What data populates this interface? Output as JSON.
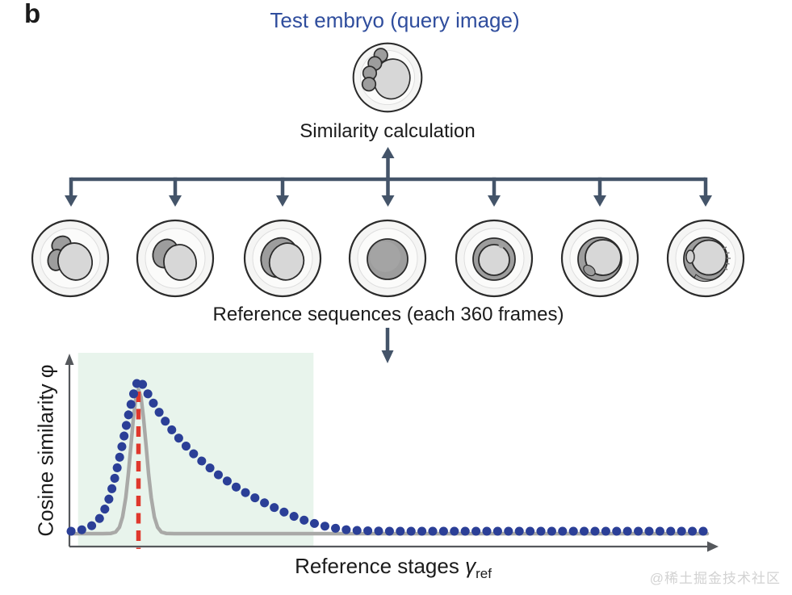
{
  "panel_label": "b",
  "title": {
    "text": "Test embryo (query image)"
  },
  "similarity_label": "Similarity calculation",
  "reference_label": "Reference sequences (each 360 frames)",
  "embryos": {
    "query": {
      "name": "query-embryo",
      "stage": "compacting morula with cells"
    },
    "reference": [
      {
        "stage": "3-cell"
      },
      {
        "stage": "2-cell"
      },
      {
        "stage": "zygote with crescent"
      },
      {
        "stage": "morula"
      },
      {
        "stage": "early blastocyst"
      },
      {
        "stage": "blastocyst"
      },
      {
        "stage": "hatching blastocyst"
      }
    ]
  },
  "chart_data": {
    "type": "line",
    "title": "",
    "xlabel": "Reference stages γref",
    "xlabel_main": "Reference stages ",
    "xlabel_symbol": "γ",
    "xlabel_subscript": "ref",
    "ylabel": "Cosine similarity φ",
    "grid": false,
    "legend": false,
    "ylim": [
      0,
      1
    ],
    "x_axis_note": "no tick labels shown; axis spans the 360 reference frames",
    "highlight_region": {
      "x_start": 0.011,
      "x_end": 0.381,
      "color": "#e8f4ec"
    },
    "peak_marker": {
      "x": 0.106,
      "style": "dashed",
      "color": "#df382d"
    },
    "series": [
      {
        "name": "cosine similarity of query vs reference stages",
        "style": "dotted",
        "color": "#2b3f97",
        "points": [
          [
            0.0,
            0.0
          ],
          [
            0.013,
            0.005
          ],
          [
            0.026,
            0.02
          ],
          [
            0.038,
            0.05
          ],
          [
            0.048,
            0.1
          ],
          [
            0.058,
            0.19
          ],
          [
            0.067,
            0.32
          ],
          [
            0.076,
            0.48
          ],
          [
            0.084,
            0.64
          ],
          [
            0.091,
            0.78
          ],
          [
            0.098,
            0.9
          ],
          [
            0.103,
            0.97
          ],
          [
            0.106,
            1.0
          ],
          [
            0.112,
            0.97
          ],
          [
            0.12,
            0.91
          ],
          [
            0.13,
            0.84
          ],
          [
            0.142,
            0.76
          ],
          [
            0.156,
            0.68
          ],
          [
            0.172,
            0.6
          ],
          [
            0.19,
            0.52
          ],
          [
            0.21,
            0.445
          ],
          [
            0.232,
            0.37
          ],
          [
            0.256,
            0.3
          ],
          [
            0.28,
            0.24
          ],
          [
            0.305,
            0.185
          ],
          [
            0.33,
            0.135
          ],
          [
            0.355,
            0.09
          ],
          [
            0.375,
            0.06
          ],
          [
            0.392,
            0.04
          ],
          [
            0.408,
            0.025
          ],
          [
            0.425,
            0.013
          ],
          [
            0.44,
            0.007
          ],
          [
            0.46,
            0.003
          ],
          [
            0.5,
            0.0
          ],
          [
            0.6,
            0.0
          ],
          [
            0.7,
            0.0
          ],
          [
            0.8,
            0.0
          ],
          [
            0.9,
            0.0
          ],
          [
            1.0,
            0.0
          ]
        ]
      },
      {
        "name": "ideal narrow match (reference self-similarity)",
        "style": "solid",
        "color": "#a9a9a7",
        "points": [
          [
            0.0,
            0.0
          ],
          [
            0.05,
            0.0
          ],
          [
            0.062,
            0.001
          ],
          [
            0.07,
            0.011
          ],
          [
            0.076,
            0.043
          ],
          [
            0.081,
            0.112
          ],
          [
            0.086,
            0.243
          ],
          [
            0.09,
            0.398
          ],
          [
            0.094,
            0.589
          ],
          [
            0.098,
            0.776
          ],
          [
            0.102,
            0.918
          ],
          [
            0.106,
            0.97
          ],
          [
            0.11,
            0.918
          ],
          [
            0.114,
            0.776
          ],
          [
            0.118,
            0.589
          ],
          [
            0.122,
            0.398
          ],
          [
            0.126,
            0.243
          ],
          [
            0.131,
            0.112
          ],
          [
            0.136,
            0.043
          ],
          [
            0.142,
            0.011
          ],
          [
            0.15,
            0.001
          ],
          [
            0.162,
            0.0
          ],
          [
            0.3,
            0.0
          ],
          [
            0.6,
            0.0
          ],
          [
            1.0,
            0.0
          ]
        ]
      }
    ]
  },
  "watermark": "@稀土掘金技术社区",
  "colors": {
    "title_blue": "#2f4d9d",
    "arrow_slate": "#445469",
    "dot_blue": "#2b3f97",
    "line_gray": "#a9a9a7",
    "dash_red": "#df382d",
    "region_green": "#e8f4ec",
    "axis_gray": "#55585c",
    "text_black": "#1b1b1b",
    "watermark_gray": "#d2d2d2",
    "embryo_dark": "#9d9d9d",
    "embryo_light": "#d7d7d7",
    "embryo_outline": "#2b2b2b",
    "zona_fill": "#f5f5f4"
  }
}
